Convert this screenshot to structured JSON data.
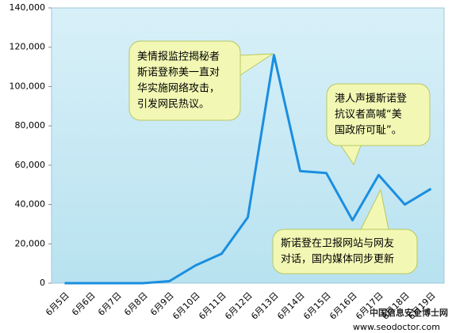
{
  "chart_data": {
    "type": "line",
    "categories": [
      "6月5日",
      "6月6日",
      "6月7日",
      "6月8日",
      "6月9日",
      "6月10日",
      "6月11日",
      "6月12日",
      "6月13日",
      "6月14日",
      "6月15日",
      "6月16日",
      "6月17日",
      "6月18日",
      "6月19日"
    ],
    "values": [
      0,
      0,
      0,
      0,
      1000,
      9000,
      15000,
      33500,
      116000,
      57000,
      56000,
      32000,
      55000,
      40000,
      48000
    ],
    "color": "#1a8ee0",
    "ylim": [
      0,
      140000
    ],
    "yticks": [
      0,
      {
        "value": 20000,
        "label": "20,000"
      },
      {
        "value": 40000,
        "label": "40,000"
      },
      {
        "value": 60000,
        "label": "60,000"
      },
      {
        "value": 80000,
        "label": "80,000"
      },
      {
        "value": 100000,
        "label": "100,000"
      },
      {
        "value": 120000,
        "label": "120,000"
      },
      {
        "value": 140000,
        "label": "140,000"
      }
    ],
    "annotations": [
      {
        "lines": [
          "美情报监控揭秘者",
          "斯诺登称美一直对",
          "华实施网络攻击，",
          "引发网民热议。"
        ]
      },
      {
        "lines": [
          "港人声援斯诺登",
          "抗议者高喊“美",
          "国政府可耻”。"
        ]
      },
      {
        "lines": [
          "斯诺登在卫报网站与网友",
          "对话，国内媒体同步更新"
        ]
      }
    ],
    "watermark": [
      "中国信息安全博士网",
      "www.seodoctor.com"
    ]
  }
}
